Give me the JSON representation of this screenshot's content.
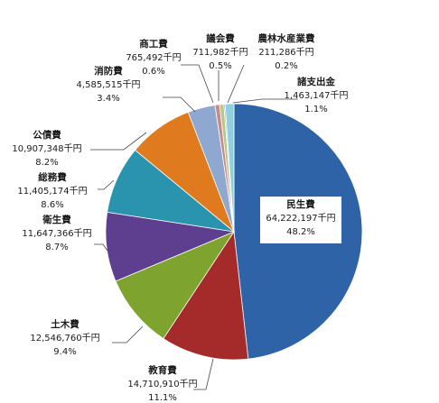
{
  "chart_data": {
    "type": "pie",
    "unit": "千円",
    "title": "",
    "slices": [
      {
        "name": "民生費",
        "value": 64222197,
        "percent": "48.2%",
        "color": "#2e63a8"
      },
      {
        "name": "教育費",
        "value": 14710910,
        "percent": "11.1%",
        "color": "#a52a2a"
      },
      {
        "name": "土木費",
        "value": 12546760,
        "percent": "9.4%",
        "color": "#7ea32f"
      },
      {
        "name": "衛生費",
        "value": 11647366,
        "percent": "8.7%",
        "color": "#5e3f8f"
      },
      {
        "name": "総務費",
        "value": 11405174,
        "percent": "8.6%",
        "color": "#2a93ad"
      },
      {
        "name": "公債費",
        "value": 10907348,
        "percent": "8.2%",
        "color": "#e07a1e"
      },
      {
        "name": "消防費",
        "value": 4585515,
        "percent": "3.4%",
        "color": "#8ea8d0"
      },
      {
        "name": "商工費",
        "value": 765492,
        "percent": "0.6%",
        "color": "#c98a8a"
      },
      {
        "name": "議会費",
        "value": 711982,
        "percent": "0.5%",
        "color": "#b7c98a"
      },
      {
        "name": "農林水産業費",
        "value": 211286,
        "percent": "0.2%",
        "color": "#9a8ab5"
      },
      {
        "name": "諸支出金",
        "value": 1463147,
        "percent": "1.1%",
        "color": "#8ecfe0"
      }
    ],
    "value_labels": [
      "64,222,197千円",
      "14,710,910千円",
      "12,546,760千円",
      "11,647,366千円",
      "11,405,174千円",
      "10,907,348千円",
      "4,585,515千円",
      "765,492千円",
      "711,982千円",
      "211,286千円",
      "1,463,147千円"
    ]
  }
}
